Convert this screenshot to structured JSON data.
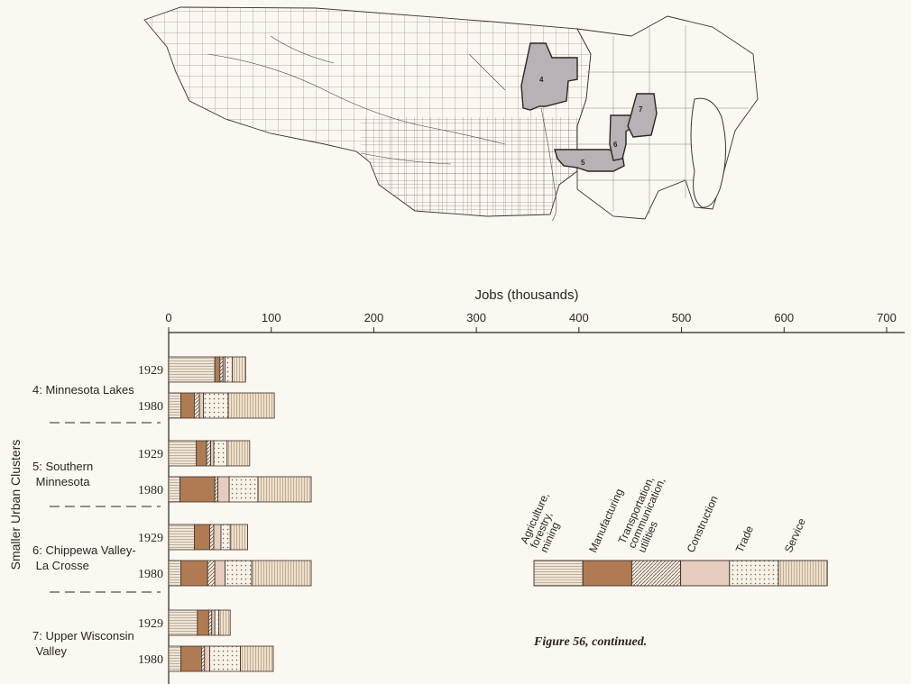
{
  "map": {
    "cluster_labels": [
      "4",
      "5",
      "6",
      "7"
    ]
  },
  "chart_data": {
    "type": "bar",
    "stacked": true,
    "orientation": "horizontal",
    "title": "Jobs (thousands)",
    "ylabel": "Smaller Urban Clusters",
    "xlim": [
      0,
      700
    ],
    "xticks": [
      0,
      100,
      200,
      300,
      400,
      500,
      600,
      700
    ],
    "grid": false,
    "legend_position": "right-middle",
    "sectors": [
      {
        "name": "Agriculture, forestry, mining",
        "color": "#efe5d6",
        "pattern": "horizontal-lines"
      },
      {
        "name": "Manufacturing",
        "color": "#b07b52",
        "pattern": "solid"
      },
      {
        "name": "Transportation, communication, utilities",
        "color": "#f5ede2",
        "pattern": "diagonal-lines"
      },
      {
        "name": "Construction",
        "color": "#e6cdbf",
        "pattern": "solid"
      },
      {
        "name": "Trade",
        "color": "#f7f1e6",
        "pattern": "dots"
      },
      {
        "name": "Service",
        "color": "#eedfca",
        "pattern": "vertical-lines"
      }
    ],
    "clusters": [
      {
        "name": "4: Minnesota Lakes",
        "years": [
          {
            "year": "1929",
            "values": [
              45,
              5,
              3,
              2,
              7,
              13
            ]
          },
          {
            "year": "1980",
            "values": [
              12,
              13,
              5,
              4,
              24,
              45
            ]
          }
        ]
      },
      {
        "name": "5: Southern Minnesota",
        "years": [
          {
            "year": "1929",
            "values": [
              27,
              10,
              4,
              3,
              13,
              22
            ]
          },
          {
            "year": "1980",
            "values": [
              11,
              34,
              3,
              11,
              28,
              52
            ]
          }
        ]
      },
      {
        "name": "6: Chippewa Valley-La Crosse",
        "years": [
          {
            "year": "1929",
            "values": [
              25,
              15,
              4,
              7,
              9,
              17
            ]
          },
          {
            "year": "1980",
            "values": [
              12,
              26,
              7,
              10,
              26,
              58
            ]
          }
        ]
      },
      {
        "name": "7: Upper Wisconsin Valley",
        "years": [
          {
            "year": "1929",
            "values": [
              28,
              11,
              3,
              3,
              4,
              11
            ]
          },
          {
            "year": "1980",
            "values": [
              12,
              20,
              3,
              5,
              30,
              32
            ]
          }
        ]
      }
    ]
  },
  "caption": "Figure 56, continued."
}
